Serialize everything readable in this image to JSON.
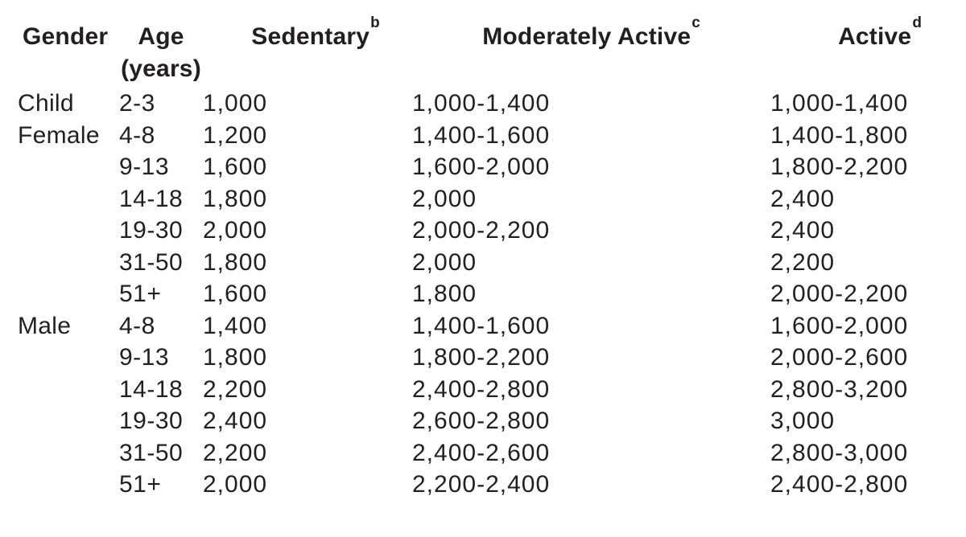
{
  "colors": {
    "text": "#231f20",
    "background": "#ffffff"
  },
  "table": {
    "headers": {
      "gender": "Gender",
      "age_line1": "Age",
      "age_line2": "(years)",
      "sedentary": "Sedentary",
      "sedentary_sup": "b",
      "moderately_active": "Moderately Active",
      "moderately_active_sup": "c",
      "active": "Active",
      "active_sup": "d"
    },
    "rows": [
      {
        "gender": "Child",
        "age": "2-3",
        "sedentary": "1,000",
        "moderately_active": "1,000-1,400",
        "active": "1,000-1,400"
      },
      {
        "gender": "Female",
        "age": "4-8",
        "sedentary": "1,200",
        "moderately_active": "1,400-1,600",
        "active": "1,400-1,800"
      },
      {
        "gender": "",
        "age": "9-13",
        "sedentary": "1,600",
        "moderately_active": "1,600-2,000",
        "active": "1,800-2,200"
      },
      {
        "gender": "",
        "age": "14-18",
        "sedentary": "1,800",
        "moderately_active": "2,000",
        "active": "2,400"
      },
      {
        "gender": "",
        "age": "19-30",
        "sedentary": "2,000",
        "moderately_active": "2,000-2,200",
        "active": "2,400"
      },
      {
        "gender": "",
        "age": "31-50",
        "sedentary": "1,800",
        "moderately_active": "2,000",
        "active": "2,200"
      },
      {
        "gender": "",
        "age": "51+",
        "sedentary": "1,600",
        "moderately_active": "1,800",
        "active": "2,000-2,200"
      },
      {
        "gender": "Male",
        "age": "4-8",
        "sedentary": "1,400",
        "moderately_active": "1,400-1,600",
        "active": "1,600-2,000"
      },
      {
        "gender": "",
        "age": "9-13",
        "sedentary": "1,800",
        "moderately_active": "1,800-2,200",
        "active": "2,000-2,600"
      },
      {
        "gender": "",
        "age": "14-18",
        "sedentary": "2,200",
        "moderately_active": "2,400-2,800",
        "active": "2,800-3,200"
      },
      {
        "gender": "",
        "age": "19-30",
        "sedentary": "2,400",
        "moderately_active": "2,600-2,800",
        "active": "3,000"
      },
      {
        "gender": "",
        "age": "31-50",
        "sedentary": "2,200",
        "moderately_active": "2,400-2,600",
        "active": "2,800-3,000"
      },
      {
        "gender": "",
        "age": "51+",
        "sedentary": "2,000",
        "moderately_active": "2,200-2,400",
        "active": "2,400-2,800"
      }
    ]
  }
}
